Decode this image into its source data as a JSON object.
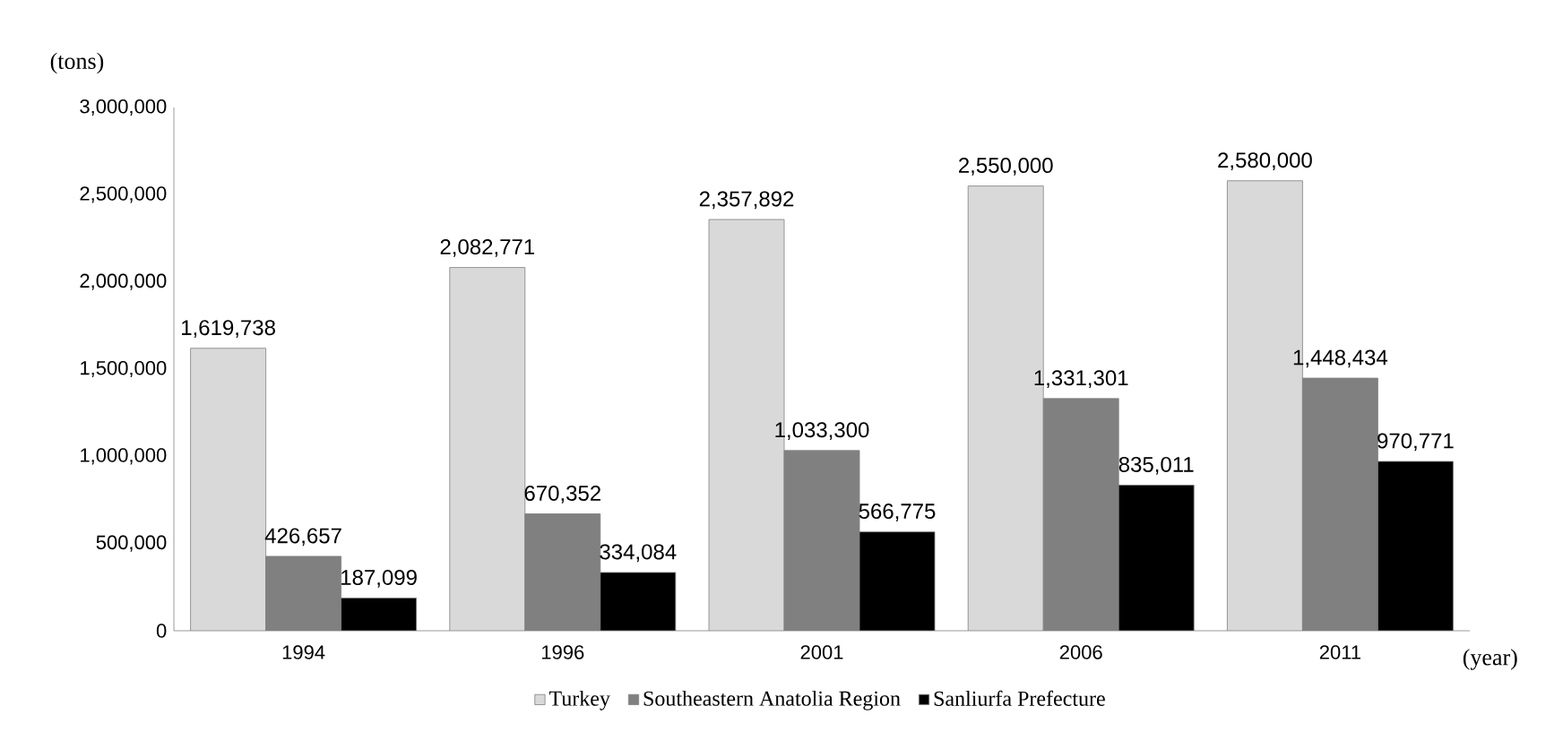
{
  "chart_data": {
    "type": "bar",
    "ylabel": "(tons)",
    "xlabel": "(year)",
    "categories": [
      "1994",
      "1996",
      "2001",
      "2006",
      "2011"
    ],
    "series": [
      {
        "name": "Turkey",
        "color": "#d9d9d9",
        "values": [
          1619738,
          2082771,
          2357892,
          2550000,
          2580000
        ],
        "value_labels": [
          "1,619,738",
          "2,082,771",
          "2,357,892",
          "2,550,000",
          "2,580,000"
        ]
      },
      {
        "name": "Southeastern Anatolia Region",
        "color": "#808080",
        "values": [
          426657,
          670352,
          1033300,
          1331301,
          1448434
        ],
        "value_labels": [
          "426,657",
          "670,352",
          "1,033,300",
          "1,331,301",
          "1,448,434"
        ]
      },
      {
        "name": "Sanliurfa Prefecture",
        "color": "#000000",
        "values": [
          187099,
          334084,
          566775,
          835011,
          970771
        ],
        "value_labels": [
          "187,099",
          "334,084",
          "566,775",
          "835,011",
          "970,771"
        ]
      }
    ],
    "ylim": [
      0,
      3000000
    ],
    "yticks": [
      {
        "value": 0,
        "label": "0"
      },
      {
        "value": 500000,
        "label": "500,000"
      },
      {
        "value": 1000000,
        "label": "1,000,000"
      },
      {
        "value": 1500000,
        "label": "1,500,000"
      },
      {
        "value": 2000000,
        "label": "2,000,000"
      },
      {
        "value": 2500000,
        "label": "2,500,000"
      },
      {
        "value": 3000000,
        "label": "3,000,000"
      }
    ],
    "grid": false,
    "legend": "bottom"
  }
}
